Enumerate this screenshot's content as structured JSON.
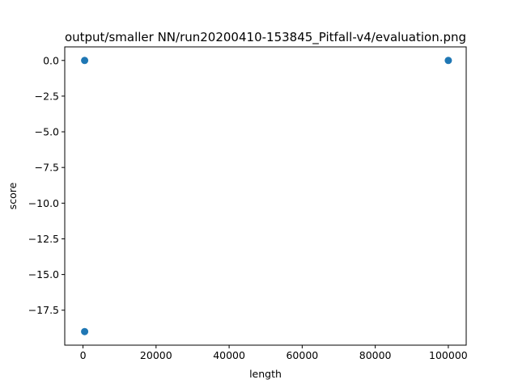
{
  "chart_data": {
    "type": "scatter",
    "title": "output/smaller NN/run20200410-153845_Pitfall-v4/evaluation.png",
    "xlabel": "length",
    "ylabel": "score",
    "xlim": [
      -4995,
      104895
    ],
    "ylim": [
      -19.95,
      0.95
    ],
    "xticks": [
      0,
      20000,
      40000,
      60000,
      80000,
      100000
    ],
    "xtick_labels": [
      "0",
      "20000",
      "40000",
      "60000",
      "80000",
      "100000"
    ],
    "yticks": [
      0.0,
      -2.5,
      -5.0,
      -7.5,
      -10.0,
      -12.5,
      -15.0,
      -17.5
    ],
    "ytick_labels": [
      "0.0",
      "−2.5",
      "−5.0",
      "−7.5",
      "−10.0",
      "−12.5",
      "−15.0",
      "−17.5"
    ],
    "grid": false,
    "point_color": "#1f77b4",
    "points": [
      {
        "x": 450,
        "y": 0
      },
      {
        "x": 450,
        "y": -19
      },
      {
        "x": 100000,
        "y": 0
      }
    ]
  }
}
